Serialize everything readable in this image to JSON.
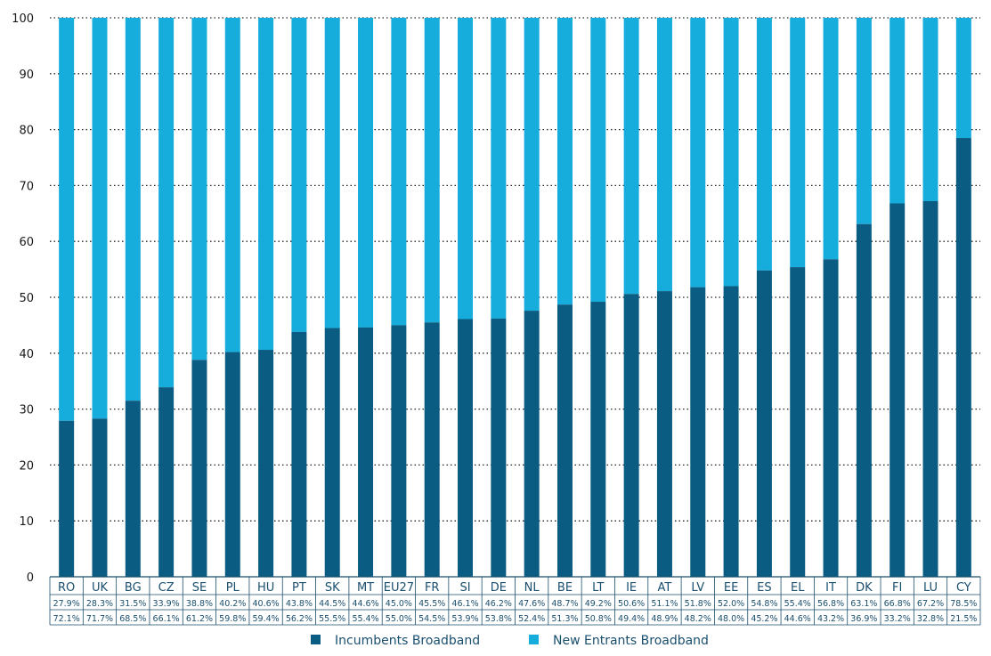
{
  "chart_data": {
    "type": "bar",
    "stacked": true,
    "title": "",
    "xlabel": "",
    "ylabel": "",
    "ylim": [
      0,
      100
    ],
    "yticks": [
      0,
      10,
      20,
      30,
      40,
      50,
      60,
      70,
      80,
      90,
      100
    ],
    "grid": "horizontal dotted",
    "legend_position": "bottom-center",
    "categories": [
      "RO",
      "UK",
      "BG",
      "CZ",
      "SE",
      "PL",
      "HU",
      "PT",
      "SK",
      "MT",
      "EU27",
      "FR",
      "SI",
      "DE",
      "NL",
      "BE",
      "LT",
      "IE",
      "AT",
      "LV",
      "EE",
      "ES",
      "EL",
      "IT",
      "DK",
      "FI",
      "LU",
      "CY"
    ],
    "series": [
      {
        "name": "Incumbents Broadband",
        "color": "#0b5c82",
        "values": [
          27.9,
          28.3,
          31.5,
          33.9,
          38.8,
          40.2,
          40.6,
          43.8,
          44.5,
          44.6,
          45.0,
          45.5,
          46.1,
          46.2,
          47.6,
          48.7,
          49.2,
          50.6,
          51.1,
          51.8,
          52.0,
          54.8,
          55.4,
          56.8,
          63.1,
          66.8,
          67.2,
          78.5
        ],
        "labels": [
          "27.9%",
          "28.3%",
          "31.5%",
          "33.9%",
          "38.8%",
          "40.2%",
          "40.6%",
          "43.8%",
          "44.5%",
          "44.6%",
          "45.0%",
          "45.5%",
          "46.1%",
          "46.2%",
          "47.6%",
          "48.7%",
          "49.2%",
          "50.6%",
          "51.1%",
          "51.8%",
          "52.0%",
          "54.8%",
          "55.4%",
          "56.8%",
          "63.1%",
          "66.8%",
          "67.2%",
          "78.5%"
        ]
      },
      {
        "name": "New Entrants Broadband",
        "color": "#16acdc",
        "values": [
          72.1,
          71.7,
          68.5,
          66.1,
          61.2,
          59.8,
          59.4,
          56.2,
          55.5,
          55.4,
          55.0,
          54.5,
          53.9,
          53.8,
          52.4,
          51.3,
          50.8,
          49.4,
          48.9,
          48.2,
          48.0,
          45.2,
          44.6,
          43.2,
          36.9,
          33.2,
          32.8,
          21.5
        ],
        "labels": [
          "72.1%",
          "71.7%",
          "68.5%",
          "66.1%",
          "61.2%",
          "59.8%",
          "59.4%",
          "56.2%",
          "55.5%",
          "55.4%",
          "55.0%",
          "54.5%",
          "53.9%",
          "53.8%",
          "52.4%",
          "51.3%",
          "50.8%",
          "49.4%",
          "48.9%",
          "48.2%",
          "48.0%",
          "45.2%",
          "44.6%",
          "43.2%",
          "36.9%",
          "33.2%",
          "32.8%",
          "21.5%"
        ]
      }
    ]
  }
}
